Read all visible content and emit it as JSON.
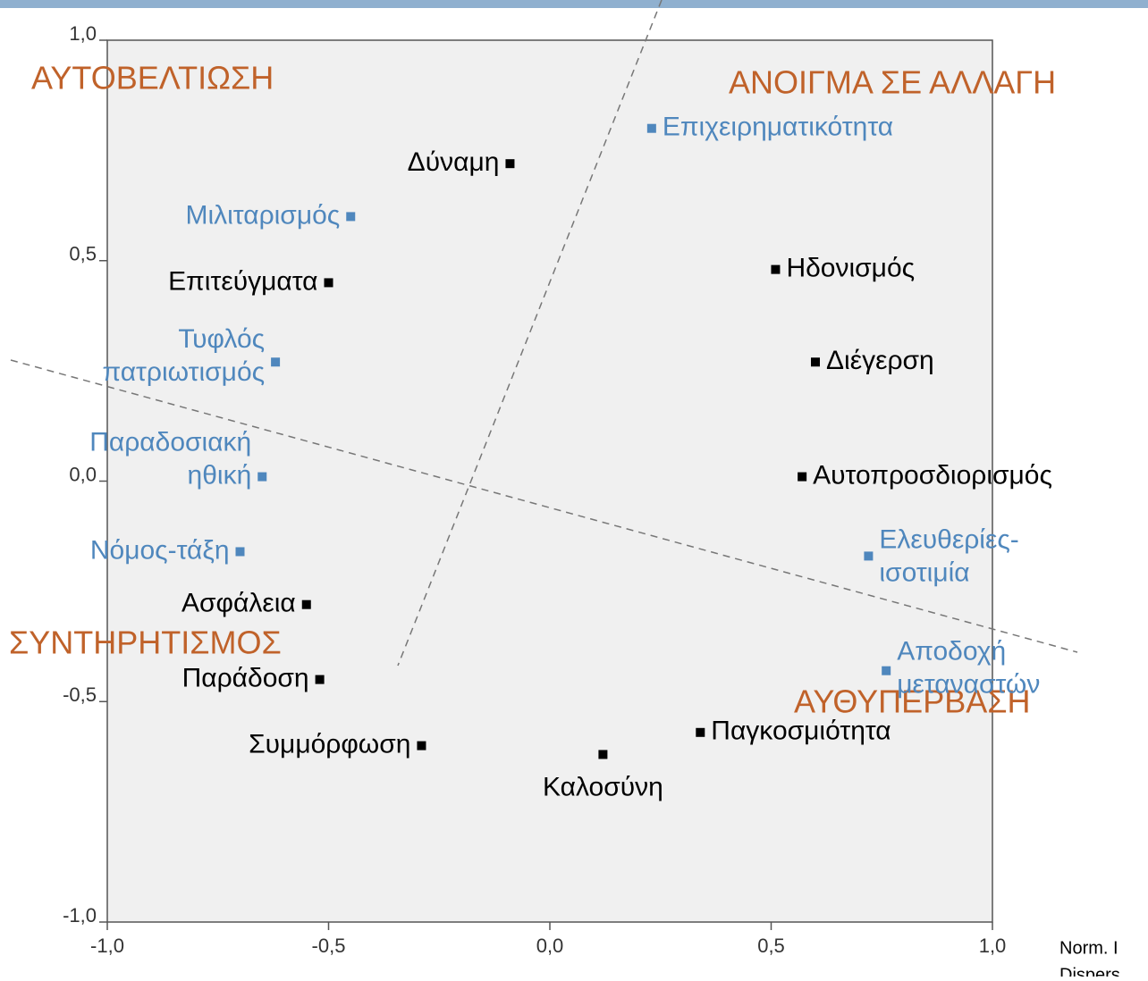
{
  "chart_data": {
    "type": "scatter",
    "annotations": [
      "ΑΥΤΟΒΕΛΤΙΩΣΗ",
      "ΑΝΟΙΓΜΑ ΣΕ ΑΛΛΑΓΗ",
      "ΣΥΝΤΗΡΗΤΙΣΜΟΣ",
      "ΑΥΘΥΠΕΡΒΑΣΗ"
    ],
    "annotation_color": "#c0622a",
    "notes": [
      "Norm. I",
      "Dispers"
    ],
    "xlim": [
      -1,
      1
    ],
    "ylim": [
      -1,
      1
    ],
    "xticks": [
      {
        "value": -1,
        "label": "-1,0"
      },
      {
        "value": -0.5,
        "label": "-0,5"
      },
      {
        "value": 0,
        "label": "0,0"
      },
      {
        "value": 0.5,
        "label": "0,5"
      },
      {
        "value": 1,
        "label": "1,0"
      }
    ],
    "yticks": [
      {
        "value": -1,
        "label": "-1,0"
      },
      {
        "value": -0.5,
        "label": "-0,5"
      },
      {
        "value": 0,
        "label": "0,0"
      },
      {
        "value": 0.5,
        "label": "0,5"
      },
      {
        "value": 1,
        "label": "1,0"
      }
    ],
    "series": [
      {
        "color": "#000000",
        "labels": [
          [
            "Δύναμη"
          ],
          [
            "Επιτεύγματα"
          ],
          [
            "Ηδονισμός"
          ],
          [
            "Διέγερση"
          ],
          [
            "Αυτοπροσδιορισμός"
          ],
          [
            "Ασφάλεια"
          ],
          [
            "Παράδοση"
          ],
          [
            "Συμμόρφωση"
          ],
          [
            "Παγκοσμιότητα"
          ],
          [
            "Καλοσύνη"
          ]
        ],
        "x": [
          -0.09,
          -0.5,
          0.51,
          0.6,
          0.57,
          -0.55,
          -0.52,
          -0.29,
          0.34,
          0.12
        ],
        "values": [
          0.72,
          0.45,
          0.48,
          0.27,
          0.01,
          -0.28,
          -0.45,
          -0.6,
          -0.57,
          -0.62
        ]
      },
      {
        "color": "#4f87bd",
        "labels": [
          [
            "Επιχειρηματικότητα"
          ],
          [
            "Μιλιταρισμός"
          ],
          [
            "Τυφλός",
            "πατριωτισμός"
          ],
          [
            "Παραδοσιακή",
            "ηθική"
          ],
          [
            "Νόμος-τάξη"
          ],
          [
            "Ελευθερίες-",
            "ισοτιμία"
          ],
          [
            "Αποδοχή",
            "μεταναστών"
          ]
        ],
        "x": [
          0.23,
          -0.45,
          -0.62,
          -0.65,
          -0.7,
          0.72,
          0.76
        ],
        "values": [
          0.8,
          0.6,
          0.27,
          0.01,
          -0.16,
          -0.17,
          -0.43
        ]
      }
    ]
  }
}
